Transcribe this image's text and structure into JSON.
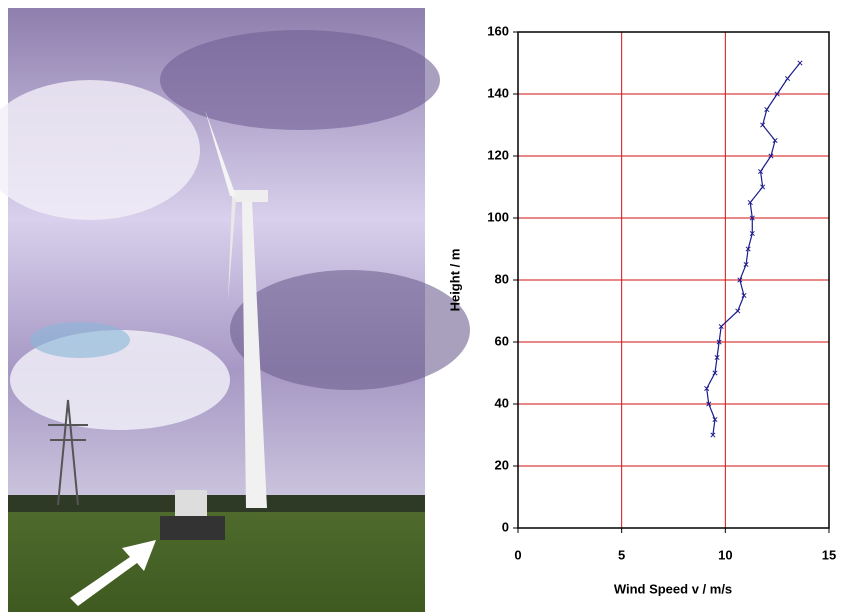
{
  "chart_data": {
    "type": "line",
    "xlabel": "Wind Speed v / m/s",
    "ylabel": "Height / m",
    "xlim": [
      0,
      15
    ],
    "xticks": [
      0,
      5,
      10,
      15
    ],
    "ylim": [
      0,
      160
    ],
    "yticks": [
      0,
      20,
      40,
      60,
      80,
      100,
      120,
      140,
      160
    ],
    "grid": true,
    "grid_color": "#d01010",
    "series": [
      {
        "color": "#1c1c8c",
        "x": [
          9.4,
          9.5,
          9.2,
          9.1,
          9.5,
          9.6,
          9.7,
          9.8,
          10.6,
          10.9,
          10.7,
          11.0,
          11.1,
          11.3,
          11.3,
          11.2,
          11.8,
          11.7,
          12.2,
          12.4,
          11.8,
          12.0,
          12.5,
          13.0,
          13.6
        ],
        "values": [
          30,
          35,
          40,
          45,
          50,
          55,
          60,
          65,
          70,
          75,
          80,
          85,
          90,
          95,
          100,
          105,
          110,
          115,
          120,
          125,
          130,
          135,
          140,
          145,
          150
        ]
      }
    ]
  }
}
